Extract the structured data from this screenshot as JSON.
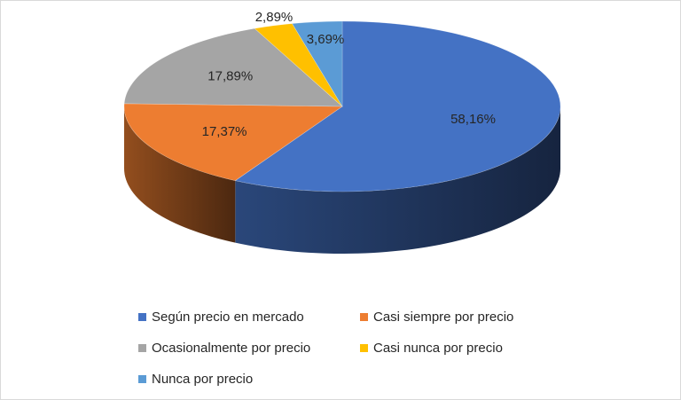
{
  "chart_data": {
    "type": "pie",
    "variant": "3d",
    "title": "",
    "legend_position": "bottom",
    "slices": [
      {
        "label": "Según precio en mercado",
        "value": 58.16,
        "display": "58,16%",
        "color": "#4472C4"
      },
      {
        "label": "Casi siempre por precio",
        "value": 17.37,
        "display": "17,37%",
        "color": "#ED7D31"
      },
      {
        "label": "Ocasionalmente por precio",
        "value": 17.89,
        "display": "17,89%",
        "color": "#A5A5A5"
      },
      {
        "label": "Casi nunca por precio",
        "value": 2.89,
        "display": "2,89%",
        "color": "#FFC000"
      },
      {
        "label": "Nunca por precio",
        "value": 3.69,
        "display": "3,69%",
        "color": "#5B9BD5"
      }
    ]
  },
  "legend": {
    "rows": [
      [
        0,
        1
      ],
      [
        2,
        3
      ],
      [
        4
      ]
    ]
  }
}
